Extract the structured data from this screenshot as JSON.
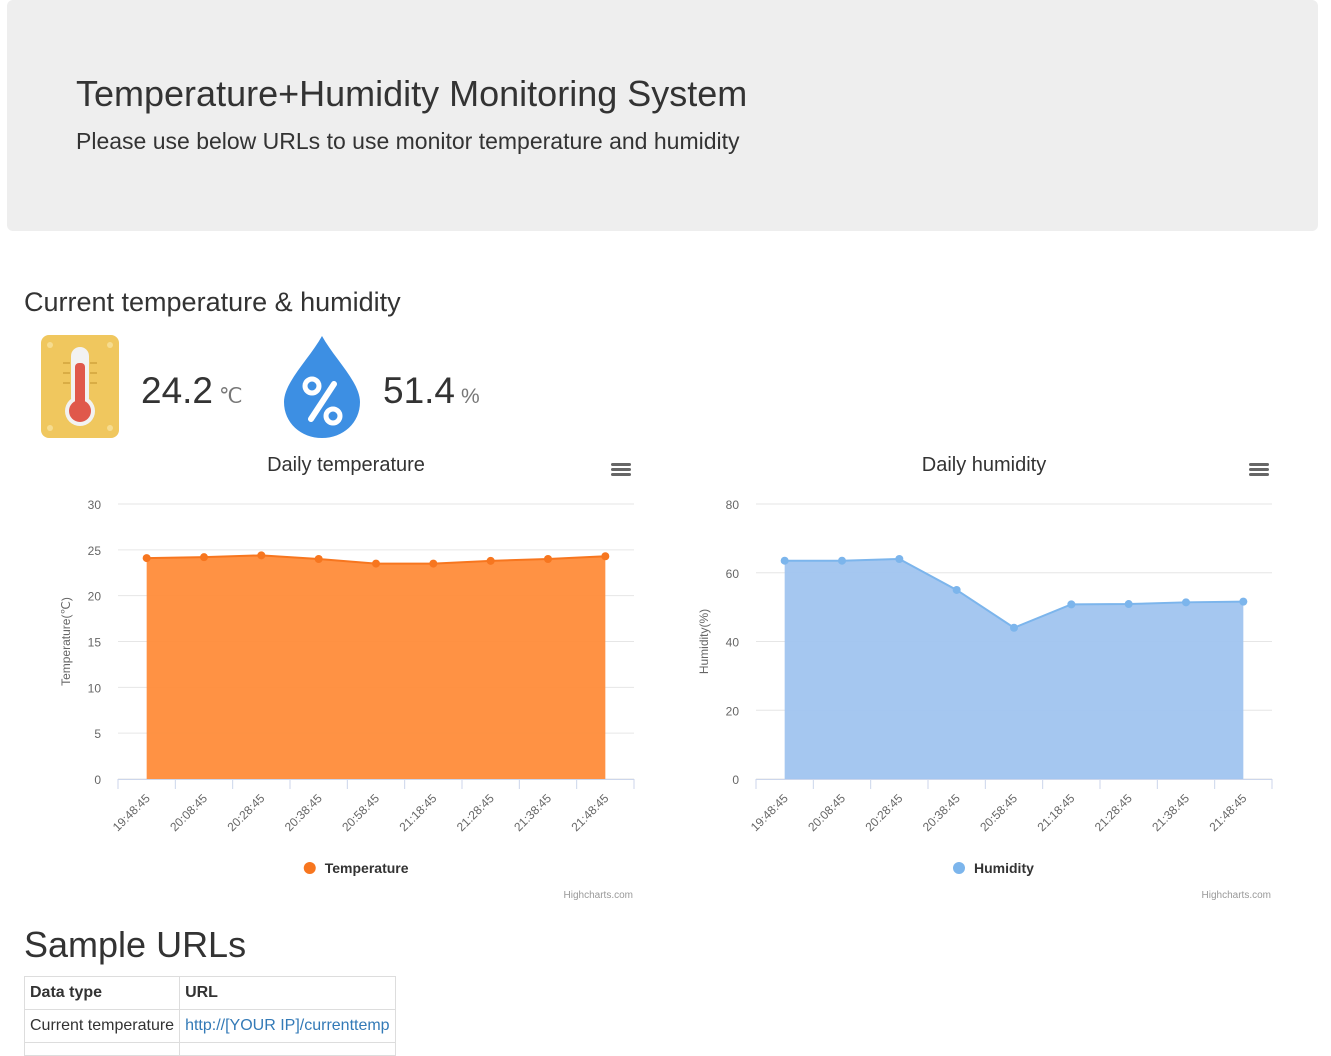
{
  "header": {
    "title": "Temperature+Humidity Monitoring System",
    "subtitle": "Please use below URLs to use monitor temperature and humidity"
  },
  "current": {
    "title": "Current temperature & humidity",
    "temperature": {
      "value": "24.2",
      "unit": "℃",
      "icon": "thermometer-icon"
    },
    "humidity": {
      "value": "51.4",
      "unit": "%",
      "icon": "humidity-drop-icon"
    }
  },
  "chart_data": [
    {
      "type": "area",
      "title": "Daily temperature",
      "xlabel": "",
      "ylabel": "Temperature(℃)",
      "categories": [
        "19:48:45",
        "20:08:45",
        "20:28:45",
        "20:38:45",
        "20:58:45",
        "21:18:45",
        "21:28:45",
        "21:38:45",
        "21:48:45"
      ],
      "ylim": [
        0,
        30
      ],
      "yticks": [
        0,
        5,
        10,
        15,
        20,
        25,
        30
      ],
      "series": [
        {
          "name": "Temperature",
          "color": "#f7761f",
          "fill": "#ff8c3a",
          "values": [
            24.1,
            24.2,
            24.4,
            24.0,
            23.5,
            23.5,
            23.8,
            24.0,
            24.3
          ]
        }
      ],
      "legend": "bottom-center",
      "credits": "Highcharts.com",
      "grid": true
    },
    {
      "type": "area",
      "title": "Daily humidity",
      "xlabel": "",
      "ylabel": "Humidity(%)",
      "categories": [
        "19:48:45",
        "20:08:45",
        "20:28:45",
        "20:38:45",
        "20:58:45",
        "21:18:45",
        "21:28:45",
        "21:38:45",
        "21:48:45"
      ],
      "ylim": [
        0,
        80
      ],
      "yticks": [
        0,
        20,
        40,
        60,
        80
      ],
      "series": [
        {
          "name": "Humidity",
          "color": "#7cb5ec",
          "fill": "#a0c4ef",
          "values": [
            63.5,
            63.5,
            64.0,
            55.0,
            44.0,
            50.8,
            50.9,
            51.4,
            51.6
          ]
        }
      ],
      "legend": "bottom-center",
      "credits": "Highcharts.com",
      "grid": true
    }
  ],
  "samples": {
    "title": "Sample URLs",
    "headers": [
      "Data type",
      "URL"
    ],
    "rows": [
      [
        "Current temperature",
        "http://[YOUR IP]/currenttemp"
      ]
    ]
  }
}
